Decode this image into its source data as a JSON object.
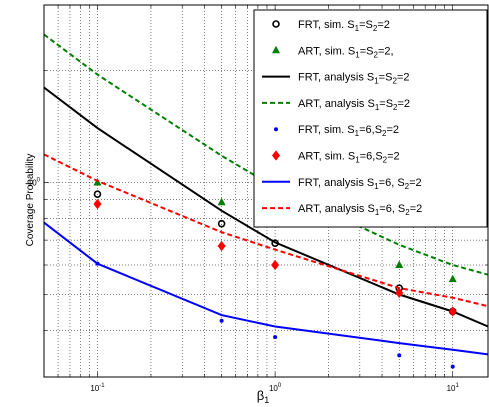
{
  "chart_data": {
    "type": "line",
    "xlabel": "β",
    "xlabel_sub": "1",
    "ylabel": "Coverage Probability",
    "x_scale": "log",
    "y_scale": "log",
    "xlim": [
      0.05,
      15.8
    ],
    "ylim": [
      0.3,
      3.0
    ],
    "grid": "dotted",
    "legend_position": "top-right",
    "x_ticks": [
      {
        "value": 0.1,
        "base": "10",
        "exp": "-1"
      },
      {
        "value": 1,
        "base": "10",
        "exp": "0"
      },
      {
        "value": 10,
        "base": "10",
        "exp": "1"
      }
    ],
    "y_ticks": [
      {
        "value": 1,
        "base": "10",
        "exp": "0"
      }
    ],
    "series": [
      {
        "name": "FRT, sim. S1=S2=2",
        "legend": {
          "pre": "FRT, sim. S",
          "sub1": "1",
          "mid": "=S",
          "sub2": "2",
          "post": "=2"
        },
        "kind": "marker",
        "marker": "circle",
        "color": "#000000",
        "x": [
          0.1,
          0.5,
          1,
          5,
          10
        ],
        "y": [
          0.93,
          0.775,
          0.687,
          0.52,
          0.45
        ]
      },
      {
        "name": "ART, sim. S1=S2=2,",
        "legend": {
          "pre": "ART, sim. S",
          "sub1": "1",
          "mid": "=S",
          "sub2": "2",
          "post": "=2,"
        },
        "kind": "marker",
        "marker": "triangle",
        "color": "#008000",
        "x": [
          0.1,
          0.5,
          1,
          5,
          10
        ],
        "y": [
          1.0,
          0.885,
          0.806,
          0.6,
          0.55
        ]
      },
      {
        "name": "FRT, analysis S1=S2=2",
        "legend": {
          "pre": "FRT, analysis S",
          "sub1": "1",
          "mid": "=S",
          "sub2": "2",
          "post": "=2"
        },
        "kind": "line",
        "dash": "solid",
        "color": "#000000",
        "x": [
          0.05,
          0.1,
          0.5,
          1,
          5,
          10,
          15.8
        ],
        "y": [
          1.8,
          1.4,
          0.84,
          0.69,
          0.5,
          0.45,
          0.41
        ]
      },
      {
        "name": "ART, analysis S1=S2=2",
        "legend": {
          "pre": "ART, analysis S",
          "sub1": "1",
          "mid": "=S",
          "sub2": "2",
          "post": "=2"
        },
        "kind": "line",
        "dash": "dashed",
        "color": "#008000",
        "x": [
          0.05,
          0.1,
          0.5,
          1,
          5,
          10,
          15.8
        ],
        "y": [
          2.5,
          1.95,
          1.18,
          0.97,
          0.68,
          0.6,
          0.565
        ]
      },
      {
        "name": "FRT, sim. S1=6,S2=2",
        "legend": {
          "pre": "FRT, sim. S",
          "sub1": "1",
          "mid": "=6,S",
          "sub2": "2",
          "post": "=2"
        },
        "kind": "marker",
        "marker": "dot",
        "color": "#0000ff",
        "x": [
          0.1,
          0.5,
          1,
          5,
          10
        ],
        "y": [
          0.605,
          0.425,
          0.384,
          0.343,
          0.32
        ]
      },
      {
        "name": "ART, sim. S1=6,S2=2",
        "legend": {
          "pre": "ART, sim. S",
          "sub1": "1",
          "mid": "=6,S",
          "sub2": "2",
          "post": "=2"
        },
        "kind": "marker",
        "marker": "diamond",
        "color": "#ff0000",
        "x": [
          0.1,
          0.5,
          1,
          5,
          10
        ],
        "y": [
          0.875,
          0.675,
          0.6,
          0.505,
          0.45
        ]
      },
      {
        "name": "FRT, analysis S1=6, S2=2",
        "legend": {
          "pre": "FRT, analysis S",
          "sub1": "1",
          "mid": "=6, S",
          "sub2": "2",
          "post": "=2"
        },
        "kind": "line",
        "dash": "solid",
        "color": "#0000ff",
        "x": [
          0.05,
          0.1,
          0.5,
          1,
          5,
          10,
          15.8
        ],
        "y": [
          0.78,
          0.605,
          0.44,
          0.41,
          0.37,
          0.355,
          0.345
        ]
      },
      {
        "name": "ART, analysis S1=6, S2=2",
        "legend": {
          "pre": "ART, analysis S",
          "sub1": "1",
          "mid": "=6, S",
          "sub2": "2",
          "post": "=2"
        },
        "kind": "line",
        "dash": "dashed",
        "color": "#ff0000",
        "x": [
          0.05,
          0.1,
          0.5,
          1,
          5,
          10,
          15.8
        ],
        "y": [
          1.19,
          1.01,
          0.735,
          0.66,
          0.52,
          0.49,
          0.465
        ]
      }
    ]
  }
}
